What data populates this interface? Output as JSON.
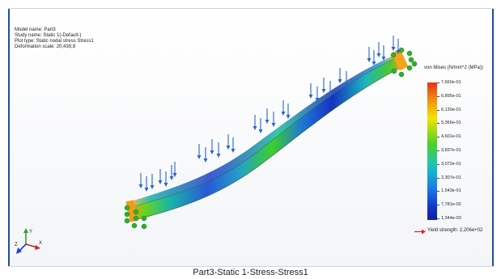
{
  "study_info": {
    "model_name": "Model name: Part3",
    "study_name": "Study name: Static 1(-Default-)",
    "plot_type": "Plot type: Static nodal stress Stress1",
    "deformation_scale": "Deformation scale: 20,439,8"
  },
  "legend": {
    "title": "von Mises (N/mm^2 (MPa))",
    "ticks": [
      "7,660e-01",
      "6,895e-01",
      "6,130e-01",
      "5,366e-01",
      "4,601e-01",
      "3,837e-01",
      "3,072e-01",
      "2,307e-01",
      "1,543e-01",
      "7,781e-02",
      "1,344e-03"
    ],
    "yield_label": "Yield strength: 2,206e+02"
  },
  "caption": "Part3-Static 1-Stress-Stress1",
  "triad": {
    "x": "X",
    "y": "Y",
    "z": "Z"
  },
  "colors": {
    "frame_border": "#1f4e9a",
    "load_arrow": "#2a67c8",
    "fixture": "#2fb12a",
    "yield_arrow": "#e02020"
  }
}
